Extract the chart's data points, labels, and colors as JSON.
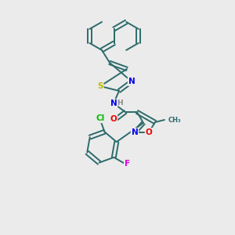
{
  "background_color": "#ebebeb",
  "bond_color": "#2d6b6b",
  "atom_colors": {
    "N": "#0000ee",
    "S": "#bbbb00",
    "O": "#ee0000",
    "Cl": "#00bb00",
    "F": "#dd00dd",
    "H": "#888888"
  },
  "fig_width": 3.0,
  "fig_height": 3.0,
  "dpi": 100
}
